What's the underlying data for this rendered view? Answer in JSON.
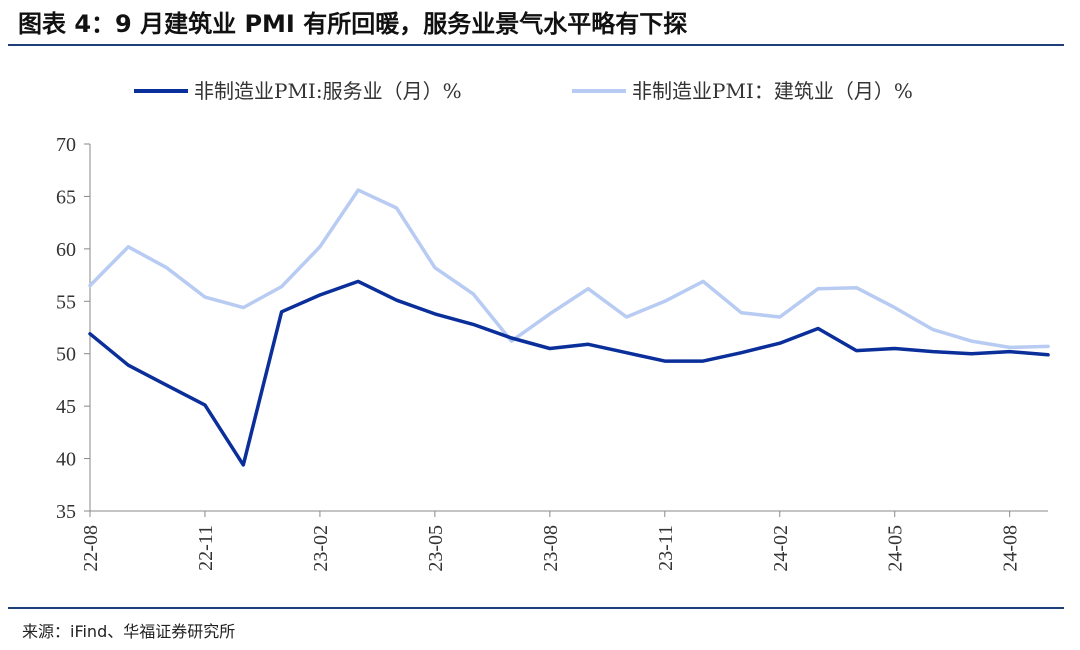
{
  "title": "图表 4：9 月建筑业 PMI 有所回暖，服务业景气水平略有下探",
  "source": "来源：iFind、华福证券研究所",
  "chart_data": {
    "type": "line",
    "x": [
      "22-08",
      "22-09",
      "22-10",
      "22-11",
      "22-12",
      "23-01",
      "23-02",
      "23-03",
      "23-04",
      "23-05",
      "23-06",
      "23-07",
      "23-08",
      "23-09",
      "23-10",
      "23-11",
      "23-12",
      "24-01",
      "24-02",
      "24-03",
      "24-04",
      "24-05",
      "24-06",
      "24-07",
      "24-08",
      "24-09"
    ],
    "x_tick_labels": [
      "22-08",
      "22-11",
      "23-02",
      "23-05",
      "23-08",
      "23-11",
      "24-02",
      "24-05",
      "24-08"
    ],
    "ylim": [
      35,
      70
    ],
    "y_ticks": [
      "35",
      "40",
      "45",
      "50",
      "55",
      "60",
      "65",
      "70"
    ],
    "legend_position": "top",
    "series": [
      {
        "name": "非制造业PMI:服务业（月）%",
        "color": "#0b2f9a",
        "values": [
          51.9,
          48.9,
          47.0,
          45.1,
          39.4,
          54.0,
          55.6,
          56.9,
          55.1,
          53.8,
          52.8,
          51.5,
          50.5,
          50.9,
          50.1,
          49.3,
          49.3,
          50.1,
          51.0,
          52.4,
          50.3,
          50.5,
          50.2,
          50.0,
          50.2,
          49.9
        ]
      },
      {
        "name": "非制造业PMI：建筑业（月）%",
        "color": "#b8cbf2",
        "values": [
          56.5,
          60.2,
          58.2,
          55.4,
          54.4,
          56.4,
          60.2,
          65.6,
          63.9,
          58.2,
          55.7,
          51.2,
          53.8,
          56.2,
          53.5,
          55.0,
          56.9,
          53.9,
          53.5,
          56.2,
          56.3,
          54.4,
          52.3,
          51.2,
          50.6,
          50.7
        ]
      }
    ]
  }
}
